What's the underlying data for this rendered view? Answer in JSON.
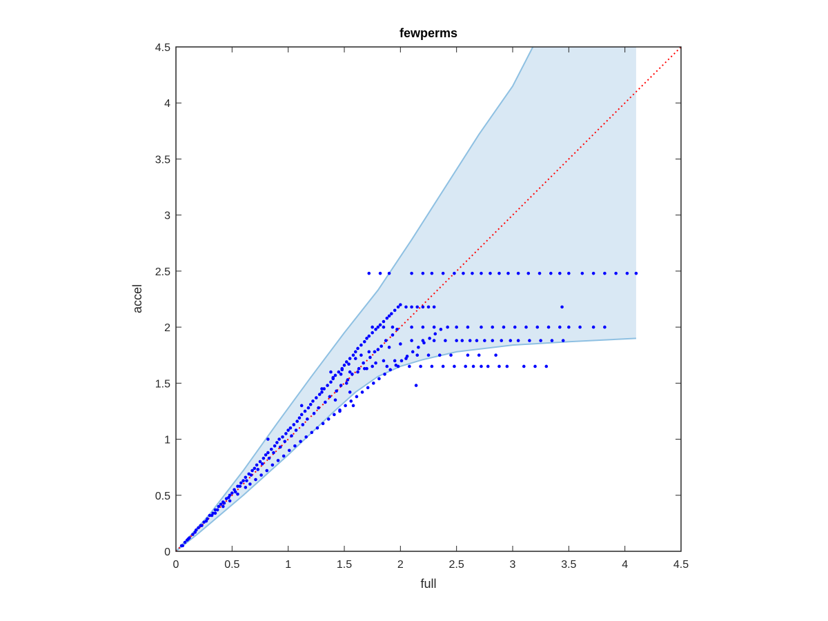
{
  "chart_data": {
    "type": "scatter",
    "title": "fewperms",
    "xlabel": "full",
    "ylabel": "accel",
    "xlim": [
      0,
      4.5
    ],
    "ylim": [
      0,
      4.5
    ],
    "x_ticks": [
      "0",
      "0.5",
      "1",
      "1.5",
      "2",
      "2.5",
      "3",
      "3.5",
      "4",
      "4.5"
    ],
    "y_ticks": [
      "0",
      "0.5",
      "1",
      "1.5",
      "2",
      "2.5",
      "3",
      "3.5",
      "4",
      "4.5"
    ],
    "grid": false,
    "colors": {
      "points": "#0000ff",
      "band_fill": "#d9e8f4",
      "band_edge": "#8ec0e2",
      "reference_line": "#ff0000",
      "axes": "#262626"
    },
    "band": {
      "upper": [
        [
          0,
          0
        ],
        [
          0.3,
          0.33
        ],
        [
          0.6,
          0.72
        ],
        [
          0.9,
          1.14
        ],
        [
          1.2,
          1.55
        ],
        [
          1.5,
          1.95
        ],
        [
          1.8,
          2.33
        ],
        [
          2.1,
          2.78
        ],
        [
          2.4,
          3.25
        ],
        [
          2.7,
          3.72
        ],
        [
          3.0,
          4.15
        ],
        [
          3.18,
          4.5
        ],
        [
          4.1,
          4.5
        ]
      ],
      "lower": [
        [
          0,
          0
        ],
        [
          0.2,
          0.16
        ],
        [
          0.4,
          0.33
        ],
        [
          0.6,
          0.5
        ],
        [
          0.8,
          0.68
        ],
        [
          1.0,
          0.86
        ],
        [
          1.2,
          1.05
        ],
        [
          1.4,
          1.24
        ],
        [
          1.6,
          1.42
        ],
        [
          1.8,
          1.56
        ],
        [
          2.0,
          1.65
        ],
        [
          2.2,
          1.71
        ],
        [
          2.5,
          1.78
        ],
        [
          3.0,
          1.84
        ],
        [
          3.5,
          1.87
        ],
        [
          4.1,
          1.9
        ]
      ]
    },
    "reference_line": {
      "x": [
        0,
        4.5
      ],
      "y": [
        0,
        4.5
      ],
      "style": "dotted"
    },
    "series": [
      {
        "x": [
          0.05,
          0.08,
          0.1,
          0.12,
          0.15,
          0.18,
          0.2,
          0.22,
          0.25,
          0.28,
          0.3,
          0.33,
          0.35,
          0.38,
          0.4,
          0.42,
          0.45,
          0.48,
          0.5,
          0.52,
          0.55,
          0.58,
          0.6,
          0.62,
          0.65,
          0.68,
          0.7,
          0.72,
          0.75,
          0.78,
          0.8,
          0.82,
          0.85,
          0.88,
          0.9,
          0.92,
          0.95,
          0.98,
          1.0,
          1.02,
          1.05,
          1.08,
          1.1,
          1.12,
          1.15,
          1.18,
          1.2,
          1.22,
          1.25,
          1.28,
          1.3,
          1.32,
          1.35,
          1.38,
          1.4,
          1.42,
          1.45,
          1.48,
          1.5,
          1.52,
          1.55,
          1.58,
          1.6,
          1.62,
          1.65,
          1.68,
          1.7,
          1.72,
          1.75,
          1.78,
          1.8,
          1.82,
          1.85,
          1.88,
          1.9,
          1.92,
          1.95,
          1.98,
          2.0,
          2.05,
          2.1,
          2.15,
          2.2,
          2.25,
          2.3,
          0.06,
          0.11,
          0.17,
          0.23,
          0.27,
          0.32,
          0.37,
          0.43,
          0.47,
          0.53,
          0.57,
          0.63,
          0.67,
          0.73,
          0.77,
          0.83,
          0.87,
          0.93,
          0.97,
          1.03,
          1.07,
          1.13,
          1.17,
          1.23,
          1.27,
          1.33,
          1.37,
          1.43,
          1.47,
          1.53,
          1.57,
          1.63,
          1.67,
          1.73,
          1.77,
          1.83,
          1.87,
          1.93,
          1.97,
          0.35,
          0.42,
          0.48,
          0.55,
          0.62,
          0.66,
          0.71,
          0.76,
          0.81,
          0.86,
          0.91,
          0.96,
          1.01,
          1.06,
          1.11,
          1.16,
          1.21,
          1.26,
          1.31,
          1.36,
          1.41,
          1.46,
          1.51,
          1.56,
          1.61,
          1.66,
          1.71,
          1.76,
          1.81,
          1.86,
          1.91,
          1.96,
          2.01,
          2.06,
          2.11,
          2.16,
          2.21,
          2.26,
          2.31,
          2.36,
          0.82,
          1.12,
          1.3,
          1.4,
          1.48,
          1.54,
          1.6,
          1.65,
          1.72,
          1.8,
          1.9,
          2.0,
          2.1,
          2.2,
          2.3,
          2.4,
          2.5,
          2.55,
          2.62,
          2.68,
          2.75,
          2.82,
          2.9,
          2.98,
          3.05,
          3.15,
          3.25,
          3.35,
          3.45,
          1.46,
          1.52,
          1.62,
          1.7,
          1.78,
          1.85,
          1.95,
          2.05,
          2.15,
          2.25,
          2.35,
          2.45,
          2.6,
          2.7,
          2.85,
          1.38,
          1.47,
          1.55,
          1.68,
          1.75,
          1.88,
          1.98,
          2.08,
          2.18,
          2.28,
          2.38,
          2.48,
          2.58,
          2.65,
          2.72,
          2.78,
          2.88,
          2.95,
          3.1,
          3.2,
          3.3,
          3.44,
          1.75,
          1.85,
          1.93,
          2.1,
          2.2,
          2.3,
          2.42,
          2.5,
          2.6,
          2.72,
          2.82,
          2.92,
          3.02,
          3.12,
          3.22,
          3.32,
          3.42,
          3.5,
          3.6,
          3.72,
          3.82,
          1.72,
          1.82,
          1.9,
          2.1,
          2.2,
          2.28,
          2.38,
          2.48,
          2.56,
          2.64,
          2.72,
          2.8,
          2.88,
          2.96,
          3.05,
          3.14,
          3.24,
          3.34,
          3.42,
          3.5,
          3.62,
          3.72,
          3.82,
          3.92,
          4.02,
          4.1,
          2.14,
          1.55,
          1.42,
          1.58
        ],
        "y": [
          0.05,
          0.08,
          0.1,
          0.12,
          0.15,
          0.19,
          0.21,
          0.23,
          0.26,
          0.29,
          0.32,
          0.34,
          0.37,
          0.4,
          0.42,
          0.44,
          0.47,
          0.5,
          0.52,
          0.55,
          0.58,
          0.61,
          0.63,
          0.66,
          0.69,
          0.72,
          0.74,
          0.77,
          0.8,
          0.83,
          0.86,
          0.88,
          0.91,
          0.94,
          0.97,
          1.0,
          1.02,
          1.05,
          1.08,
          1.1,
          1.13,
          1.16,
          1.19,
          1.22,
          1.25,
          1.28,
          1.31,
          1.34,
          1.37,
          1.4,
          1.42,
          1.45,
          1.48,
          1.51,
          1.54,
          1.57,
          1.6,
          1.63,
          1.66,
          1.69,
          1.72,
          1.75,
          1.78,
          1.81,
          1.84,
          1.87,
          1.9,
          1.92,
          1.95,
          1.98,
          2.0,
          2.02,
          2.05,
          2.08,
          2.1,
          2.12,
          2.15,
          2.18,
          2.2,
          2.18,
          2.18,
          2.18,
          2.18,
          2.18,
          2.18,
          0.05,
          0.11,
          0.17,
          0.23,
          0.27,
          0.32,
          0.37,
          0.43,
          0.48,
          0.53,
          0.58,
          0.63,
          0.68,
          0.73,
          0.78,
          0.83,
          0.88,
          0.93,
          0.98,
          1.03,
          1.08,
          1.13,
          1.18,
          1.23,
          1.28,
          1.33,
          1.38,
          1.43,
          1.48,
          1.53,
          1.58,
          1.63,
          1.68,
          1.73,
          1.78,
          1.83,
          1.88,
          1.93,
          1.98,
          0.34,
          0.4,
          0.45,
          0.51,
          0.57,
          0.6,
          0.64,
          0.68,
          0.72,
          0.77,
          0.81,
          0.85,
          0.9,
          0.94,
          0.98,
          1.02,
          1.06,
          1.1,
          1.14,
          1.18,
          1.22,
          1.26,
          1.3,
          1.34,
          1.38,
          1.42,
          1.46,
          1.5,
          1.54,
          1.58,
          1.62,
          1.66,
          1.7,
          1.74,
          1.78,
          1.82,
          1.86,
          1.9,
          1.94,
          1.98,
          1.0,
          1.3,
          1.45,
          1.55,
          1.62,
          1.67,
          1.72,
          1.75,
          1.78,
          1.8,
          1.82,
          1.85,
          1.88,
          1.88,
          1.88,
          1.88,
          1.88,
          1.88,
          1.88,
          1.88,
          1.88,
          1.88,
          1.88,
          1.88,
          1.88,
          1.88,
          1.88,
          1.88,
          1.88,
          1.25,
          1.5,
          1.6,
          1.63,
          1.68,
          1.7,
          1.7,
          1.72,
          1.75,
          1.75,
          1.75,
          1.75,
          1.75,
          1.75,
          1.75,
          1.6,
          1.58,
          1.6,
          1.63,
          1.65,
          1.65,
          1.65,
          1.65,
          1.65,
          1.65,
          1.65,
          1.65,
          1.65,
          1.65,
          1.65,
          1.65,
          1.65,
          1.65,
          1.65,
          1.65,
          1.65,
          2.18,
          2.0,
          2.0,
          2.0,
          2.0,
          2.0,
          2.0,
          2.0,
          2.0,
          2.0,
          2.0,
          2.0,
          2.0,
          2.0,
          2.0,
          2.0,
          2.0,
          2.0,
          2.0,
          2.0,
          2.0,
          2.0,
          2.48,
          2.48,
          2.48,
          2.48,
          2.48,
          2.48,
          2.48,
          2.48,
          2.48,
          2.48,
          2.48,
          2.48,
          2.48,
          2.48,
          2.48,
          2.48,
          2.48,
          2.48,
          2.48,
          2.48,
          2.48,
          2.48,
          2.48,
          2.48,
          2.48,
          2.48,
          1.48,
          1.42,
          1.35,
          1.3
        ]
      }
    ]
  }
}
